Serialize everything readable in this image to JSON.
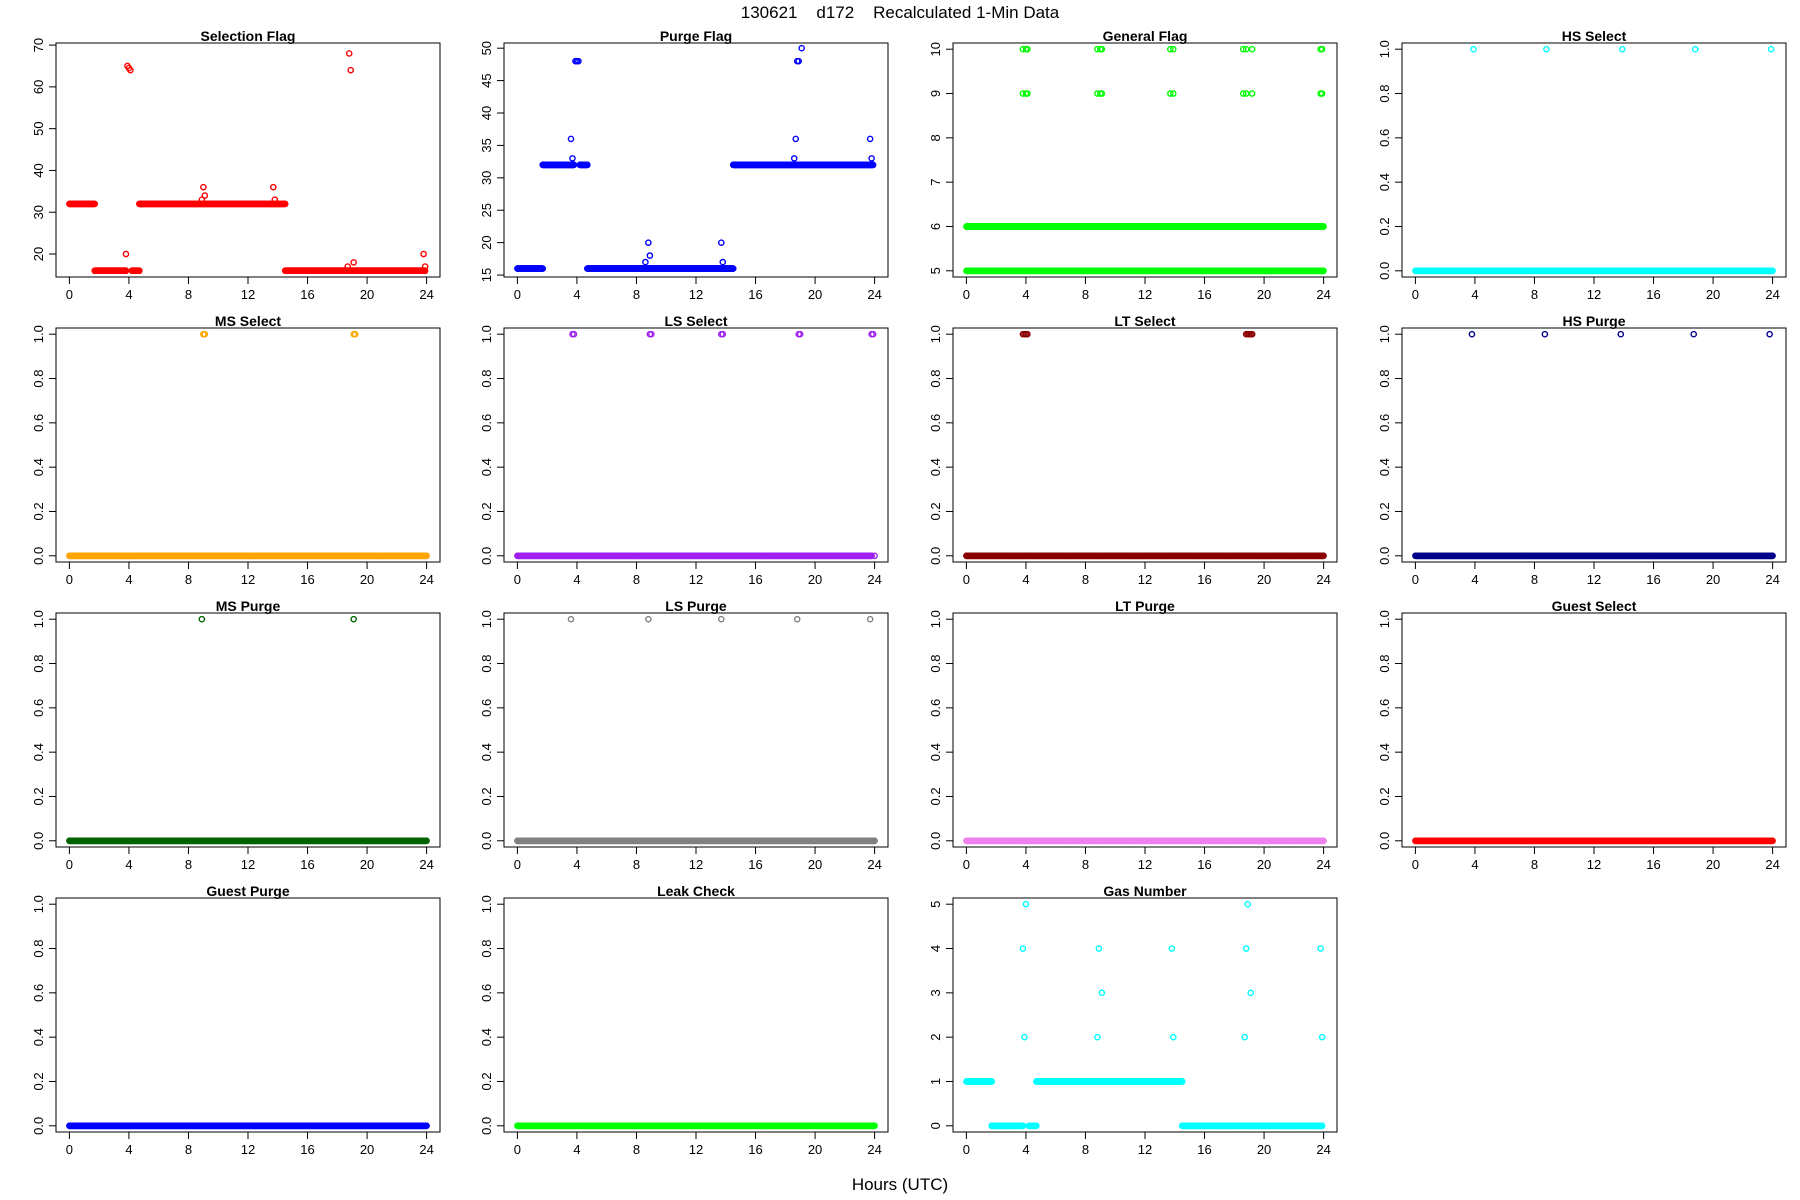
{
  "figure": {
    "title": "130621    d172    Recalculated 1-Min Data",
    "xlabel": "Hours (UTC)"
  },
  "chart_data": [
    {
      "type": "scatter",
      "title": "Selection Flag",
      "color": "#ff0000",
      "x_ticks": [
        0,
        4,
        8,
        12,
        16,
        20,
        24
      ],
      "y_ticks": [
        20,
        30,
        40,
        50,
        60,
        70
      ],
      "ylim": [
        14.5,
        70.5
      ],
      "xlim": [
        -0.9,
        24.9
      ],
      "series": [
        {
          "x_range": [
            0,
            1.7
          ],
          "y": 32
        },
        {
          "x_range": [
            1.7,
            3.8
          ],
          "y": 16
        },
        {
          "x_range": [
            4.2,
            4.7
          ],
          "y": 16
        },
        {
          "x_range": [
            4.7,
            14.5
          ],
          "y": 32
        },
        {
          "x_range": [
            14.5,
            23.9
          ],
          "y": 16
        }
      ],
      "points": [
        [
          3.8,
          20
        ],
        [
          3.9,
          65
        ],
        [
          4.0,
          64.5
        ],
        [
          4.1,
          64
        ],
        [
          8.9,
          33
        ],
        [
          9.0,
          36
        ],
        [
          9.1,
          34
        ],
        [
          13.7,
          36
        ],
        [
          13.8,
          33
        ],
        [
          18.7,
          17
        ],
        [
          18.8,
          68
        ],
        [
          18.9,
          64
        ],
        [
          19.1,
          18
        ],
        [
          23.8,
          20
        ],
        [
          23.9,
          17
        ]
      ]
    },
    {
      "type": "scatter",
      "title": "Purge Flag",
      "color": "#0000ff",
      "x_ticks": [
        0,
        4,
        8,
        12,
        16,
        20,
        24
      ],
      "y_ticks": [
        15,
        20,
        25,
        30,
        35,
        40,
        45,
        50
      ],
      "ylim": [
        14.7,
        50.8
      ],
      "xlim": [
        -0.9,
        24.9
      ],
      "series": [
        {
          "x_range": [
            0,
            1.7
          ],
          "y": 16
        },
        {
          "x_range": [
            1.7,
            3.8
          ],
          "y": 32
        },
        {
          "x_range": [
            4.2,
            4.7
          ],
          "y": 32
        },
        {
          "x_range": [
            4.7,
            14.5
          ],
          "y": 16
        },
        {
          "x_range": [
            14.5,
            23.9
          ],
          "y": 32
        }
      ],
      "points": [
        [
          3.6,
          36
        ],
        [
          3.7,
          33
        ],
        [
          3.9,
          48
        ],
        [
          4.0,
          48
        ],
        [
          4.1,
          48
        ],
        [
          8.6,
          17
        ],
        [
          8.8,
          20
        ],
        [
          8.9,
          18
        ],
        [
          13.7,
          20
        ],
        [
          13.8,
          17
        ],
        [
          18.6,
          33
        ],
        [
          18.7,
          36
        ],
        [
          18.8,
          48
        ],
        [
          18.9,
          48
        ],
        [
          19.1,
          50
        ],
        [
          23.7,
          36
        ],
        [
          23.8,
          33
        ]
      ]
    },
    {
      "type": "scatter",
      "title": "General Flag",
      "color": "#00ff00",
      "x_ticks": [
        0,
        4,
        8,
        12,
        16,
        20,
        24
      ],
      "y_ticks": [
        5,
        6,
        7,
        8,
        9,
        10
      ],
      "ylim": [
        4.86,
        10.14
      ],
      "xlim": [
        -0.9,
        24.9
      ],
      "series": [
        {
          "x_range": [
            0,
            24
          ],
          "y": 6
        },
        {
          "x_range": [
            0,
            24
          ],
          "y": 5
        }
      ],
      "points": [
        [
          3.8,
          10
        ],
        [
          4.0,
          10
        ],
        [
          4.1,
          10
        ],
        [
          3.8,
          9
        ],
        [
          4.0,
          9
        ],
        [
          4.1,
          9
        ],
        [
          8.8,
          10
        ],
        [
          9.0,
          10
        ],
        [
          9.1,
          10
        ],
        [
          8.8,
          9
        ],
        [
          9.0,
          9
        ],
        [
          9.1,
          9
        ],
        [
          13.7,
          10
        ],
        [
          13.9,
          10
        ],
        [
          13.7,
          9
        ],
        [
          13.9,
          9
        ],
        [
          18.6,
          10
        ],
        [
          18.8,
          10
        ],
        [
          19.2,
          10
        ],
        [
          18.6,
          9
        ],
        [
          18.8,
          9
        ],
        [
          19.2,
          9
        ],
        [
          23.8,
          10
        ],
        [
          23.9,
          10
        ],
        [
          23.8,
          9
        ],
        [
          23.9,
          9
        ]
      ]
    },
    {
      "type": "scatter",
      "title": "HS Select",
      "color": "#00ffff",
      "x_ticks": [
        0,
        4,
        8,
        12,
        16,
        20,
        24
      ],
      "y_ticks": [
        0.0,
        0.2,
        0.4,
        0.6,
        0.8,
        1.0
      ],
      "ylim": [
        -0.028,
        1.028
      ],
      "xlim": [
        -0.9,
        24.9
      ],
      "series": [
        {
          "x_range": [
            0,
            24
          ],
          "y": 0
        }
      ],
      "points": [
        [
          3.9,
          1
        ],
        [
          8.8,
          1
        ],
        [
          13.9,
          1
        ],
        [
          18.8,
          1
        ],
        [
          23.9,
          1
        ]
      ]
    },
    {
      "type": "scatter",
      "title": "MS Select",
      "color": "#ffa500",
      "x_ticks": [
        0,
        4,
        8,
        12,
        16,
        20,
        24
      ],
      "y_ticks": [
        0.0,
        0.2,
        0.4,
        0.6,
        0.8,
        1.0
      ],
      "ylim": [
        -0.028,
        1.028
      ],
      "xlim": [
        -0.9,
        24.9
      ],
      "series": [
        {
          "x_range": [
            0,
            24
          ],
          "y": 0
        }
      ],
      "points": [
        [
          9.0,
          1
        ],
        [
          9.1,
          1
        ],
        [
          19.1,
          1
        ],
        [
          19.2,
          1
        ]
      ]
    },
    {
      "type": "scatter",
      "title": "LS Select",
      "color": "#a020f0",
      "x_ticks": [
        0,
        4,
        8,
        12,
        16,
        20,
        24
      ],
      "y_ticks": [
        0.0,
        0.2,
        0.4,
        0.6,
        0.8,
        1.0
      ],
      "ylim": [
        -0.028,
        1.028
      ],
      "xlim": [
        -0.9,
        24.9
      ],
      "series": [
        {
          "x_range": [
            0,
            23.8
          ],
          "y": 0
        }
      ],
      "points": [
        [
          3.7,
          1
        ],
        [
          3.8,
          1
        ],
        [
          8.9,
          1
        ],
        [
          9.0,
          1
        ],
        [
          13.7,
          1
        ],
        [
          13.8,
          1
        ],
        [
          18.9,
          1
        ],
        [
          19.0,
          1
        ],
        [
          23.8,
          1
        ],
        [
          23.9,
          1
        ],
        [
          24.0,
          0
        ]
      ]
    },
    {
      "type": "scatter",
      "title": "LT Select",
      "color": "#8b0000",
      "x_ticks": [
        0,
        4,
        8,
        12,
        16,
        20,
        24
      ],
      "y_ticks": [
        0.0,
        0.2,
        0.4,
        0.6,
        0.8,
        1.0
      ],
      "ylim": [
        -0.028,
        1.028
      ],
      "xlim": [
        -0.9,
        24.9
      ],
      "series": [
        {
          "x_range": [
            0,
            24
          ],
          "y": 0
        }
      ],
      "points": [
        [
          3.8,
          1
        ],
        [
          3.9,
          1
        ],
        [
          4.0,
          1
        ],
        [
          4.1,
          1
        ],
        [
          18.8,
          1
        ],
        [
          18.9,
          1
        ],
        [
          19.0,
          1
        ],
        [
          19.1,
          1
        ],
        [
          19.2,
          1
        ]
      ]
    },
    {
      "type": "scatter",
      "title": "HS Purge",
      "color": "#00008b",
      "x_ticks": [
        0,
        4,
        8,
        12,
        16,
        20,
        24
      ],
      "y_ticks": [
        0.0,
        0.2,
        0.4,
        0.6,
        0.8,
        1.0
      ],
      "ylim": [
        -0.028,
        1.028
      ],
      "xlim": [
        -0.9,
        24.9
      ],
      "series": [
        {
          "x_range": [
            0,
            24
          ],
          "y": 0
        }
      ],
      "points": [
        [
          3.8,
          1
        ],
        [
          8.7,
          1
        ],
        [
          13.8,
          1
        ],
        [
          18.7,
          1
        ],
        [
          23.8,
          1
        ]
      ]
    },
    {
      "type": "scatter",
      "title": "MS Purge",
      "color": "#006400",
      "x_ticks": [
        0,
        4,
        8,
        12,
        16,
        20,
        24
      ],
      "y_ticks": [
        0.0,
        0.2,
        0.4,
        0.6,
        0.8,
        1.0
      ],
      "ylim": [
        -0.028,
        1.028
      ],
      "xlim": [
        -0.9,
        24.9
      ],
      "series": [
        {
          "x_range": [
            0,
            24
          ],
          "y": 0
        }
      ],
      "points": [
        [
          8.9,
          1
        ],
        [
          19.1,
          1
        ]
      ]
    },
    {
      "type": "scatter",
      "title": "LS Purge",
      "color": "#808080",
      "x_ticks": [
        0,
        4,
        8,
        12,
        16,
        20,
        24
      ],
      "y_ticks": [
        0.0,
        0.2,
        0.4,
        0.6,
        0.8,
        1.0
      ],
      "ylim": [
        -0.028,
        1.028
      ],
      "xlim": [
        -0.9,
        24.9
      ],
      "series": [
        {
          "x_range": [
            0,
            24
          ],
          "y": 0
        }
      ],
      "points": [
        [
          3.6,
          1
        ],
        [
          8.8,
          1
        ],
        [
          13.7,
          1
        ],
        [
          18.8,
          1
        ],
        [
          23.7,
          1
        ]
      ]
    },
    {
      "type": "scatter",
      "title": "LT Purge",
      "color": "#ee82ee",
      "x_ticks": [
        0,
        4,
        8,
        12,
        16,
        20,
        24
      ],
      "y_ticks": [
        0.0,
        0.2,
        0.4,
        0.6,
        0.8,
        1.0
      ],
      "ylim": [
        -0.028,
        1.028
      ],
      "xlim": [
        -0.9,
        24.9
      ],
      "series": [
        {
          "x_range": [
            0,
            24
          ],
          "y": 0
        }
      ],
      "points": []
    },
    {
      "type": "scatter",
      "title": "Guest Select",
      "color": "#ff0000",
      "x_ticks": [
        0,
        4,
        8,
        12,
        16,
        20,
        24
      ],
      "y_ticks": [
        0.0,
        0.2,
        0.4,
        0.6,
        0.8,
        1.0
      ],
      "ylim": [
        -0.028,
        1.028
      ],
      "xlim": [
        -0.9,
        24.9
      ],
      "series": [
        {
          "x_range": [
            0,
            24
          ],
          "y": 0
        }
      ],
      "points": []
    },
    {
      "type": "scatter",
      "title": "Guest Purge",
      "color": "#0000ff",
      "x_ticks": [
        0,
        4,
        8,
        12,
        16,
        20,
        24
      ],
      "y_ticks": [
        0.0,
        0.2,
        0.4,
        0.6,
        0.8,
        1.0
      ],
      "ylim": [
        -0.028,
        1.028
      ],
      "xlim": [
        -0.9,
        24.9
      ],
      "series": [
        {
          "x_range": [
            0,
            24
          ],
          "y": 0
        }
      ],
      "points": []
    },
    {
      "type": "scatter",
      "title": "Leak Check",
      "color": "#00ff00",
      "x_ticks": [
        0,
        4,
        8,
        12,
        16,
        20,
        24
      ],
      "y_ticks": [
        0.0,
        0.2,
        0.4,
        0.6,
        0.8,
        1.0
      ],
      "ylim": [
        -0.028,
        1.028
      ],
      "xlim": [
        -0.9,
        24.9
      ],
      "series": [
        {
          "x_range": [
            0,
            24
          ],
          "y": 0
        }
      ],
      "points": []
    },
    {
      "type": "scatter",
      "title": "Gas Number",
      "color": "#00ffff",
      "x_ticks": [
        0,
        4,
        8,
        12,
        16,
        20,
        24
      ],
      "y_ticks": [
        0,
        1,
        2,
        3,
        4,
        5
      ],
      "ylim": [
        -0.14,
        5.14
      ],
      "xlim": [
        -0.9,
        24.9
      ],
      "series": [
        {
          "x_range": [
            0,
            1.7
          ],
          "y": 1
        },
        {
          "x_range": [
            1.7,
            3.8
          ],
          "y": 0
        },
        {
          "x_range": [
            4.2,
            4.7
          ],
          "y": 0
        },
        {
          "x_range": [
            4.7,
            14.5
          ],
          "y": 1
        },
        {
          "x_range": [
            14.5,
            23.9
          ],
          "y": 0
        }
      ],
      "points": [
        [
          3.8,
          4
        ],
        [
          3.9,
          2
        ],
        [
          4.0,
          5
        ],
        [
          8.8,
          2
        ],
        [
          8.9,
          4
        ],
        [
          9.1,
          3
        ],
        [
          13.8,
          4
        ],
        [
          13.9,
          2
        ],
        [
          18.7,
          2
        ],
        [
          18.8,
          4
        ],
        [
          18.9,
          5
        ],
        [
          19.1,
          3
        ],
        [
          23.8,
          4
        ],
        [
          23.9,
          2
        ]
      ]
    }
  ]
}
